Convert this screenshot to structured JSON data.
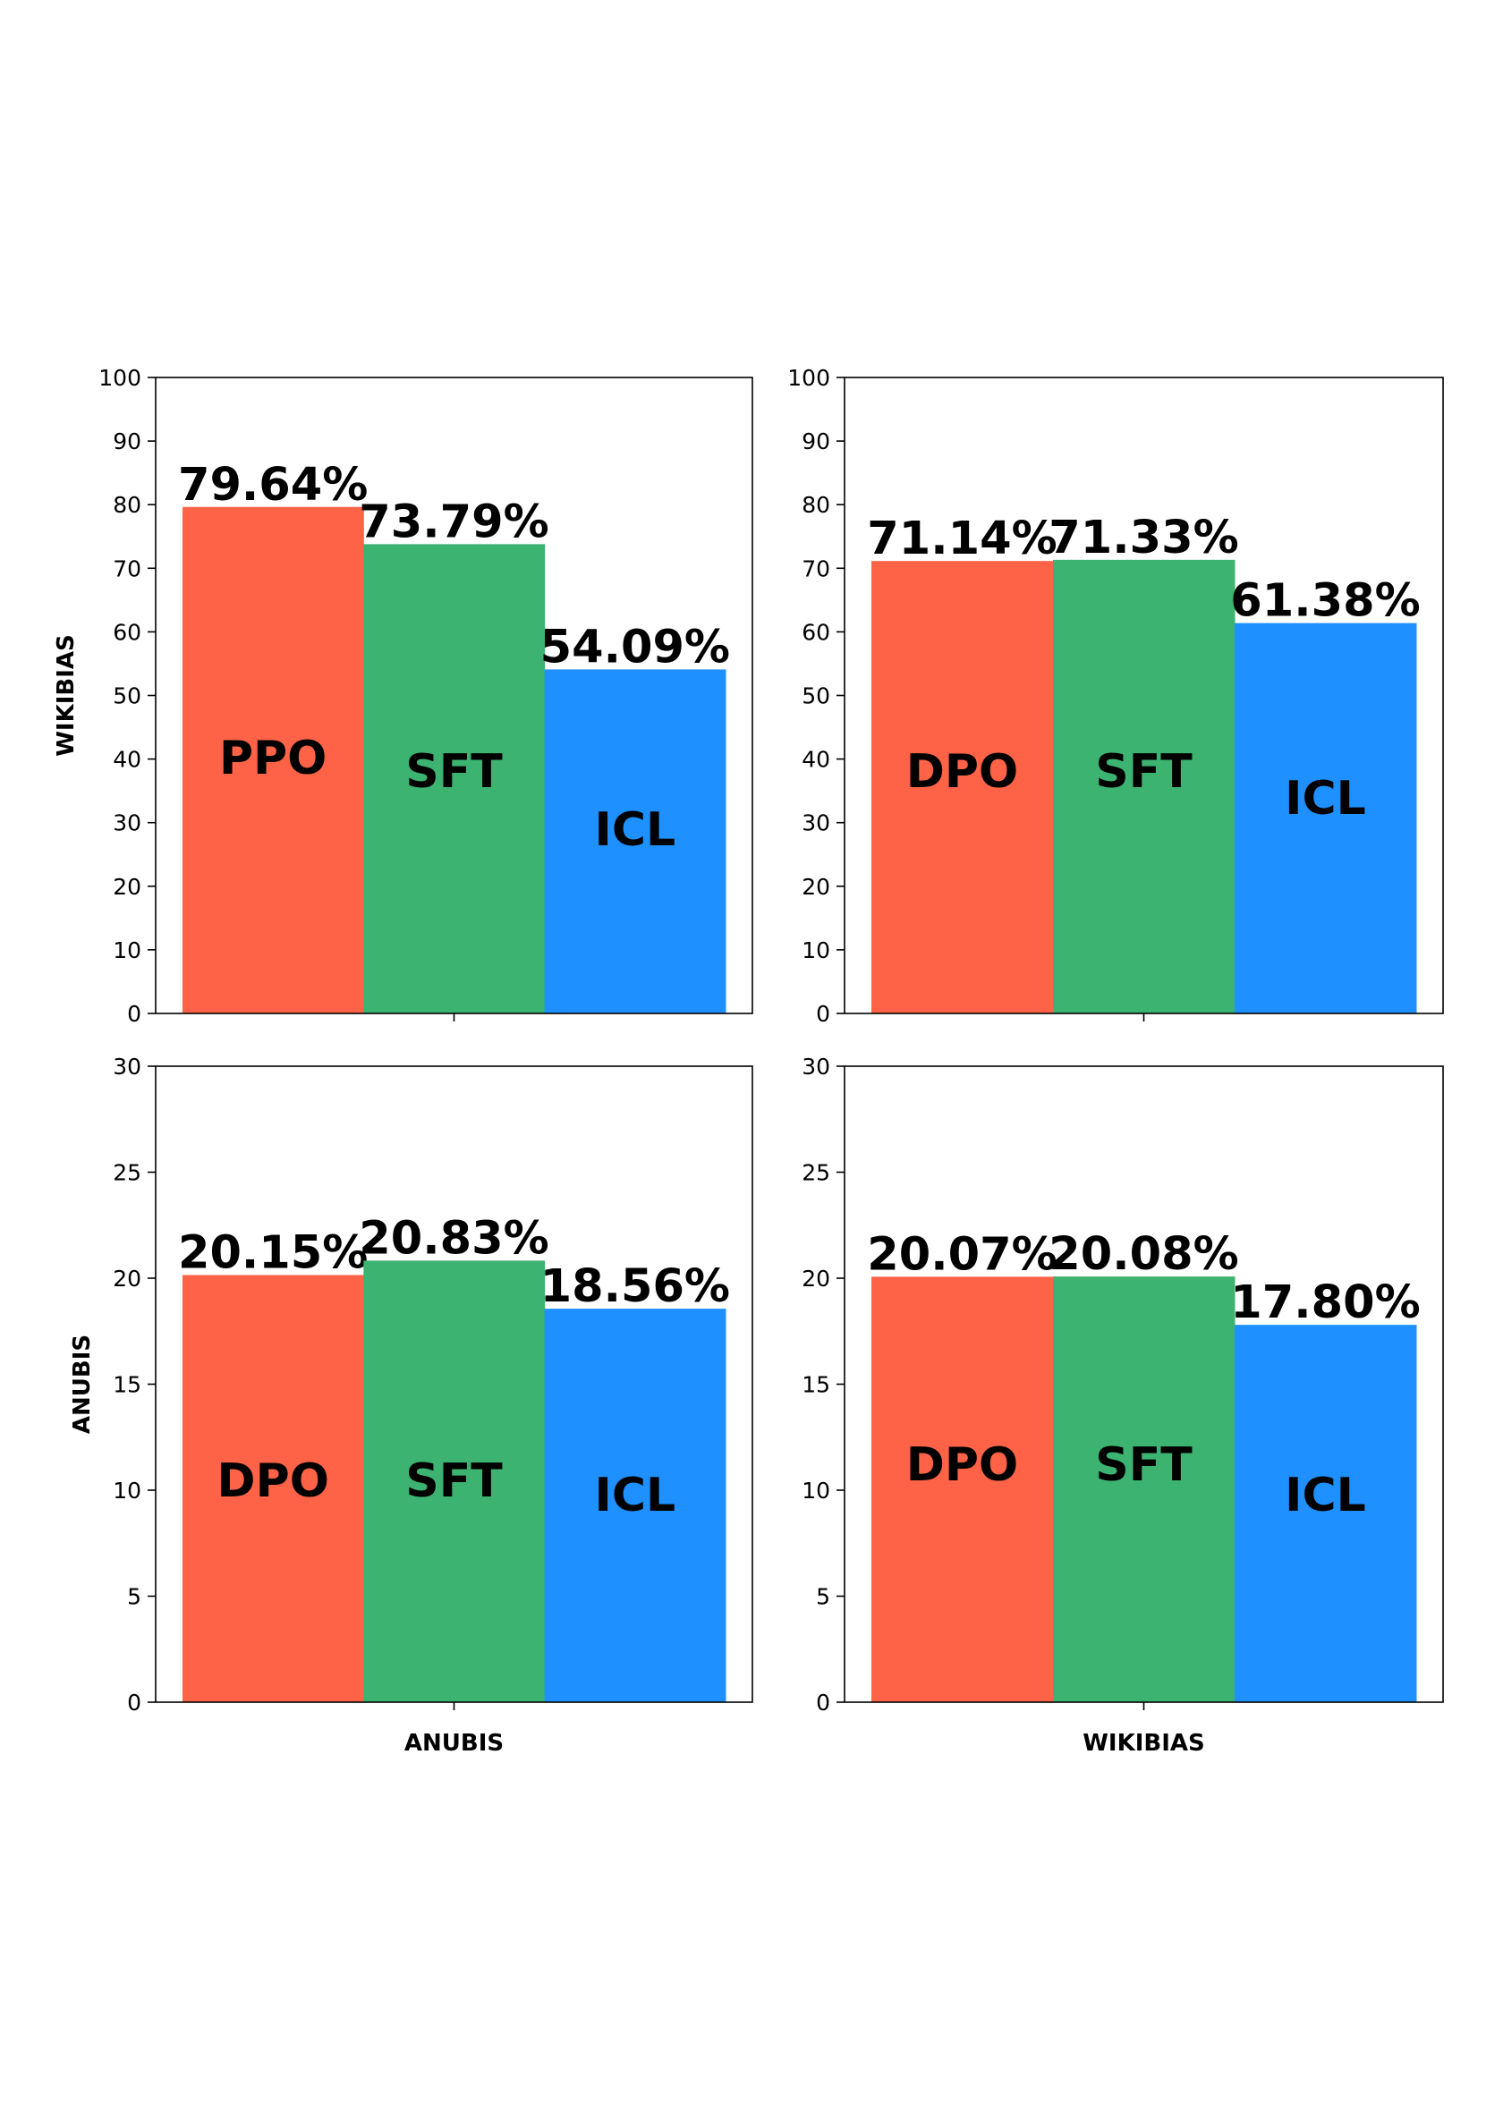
{
  "colors": {
    "DPO": "#ff6347",
    "PPO": "#ff6347",
    "SFT": "#3cb371",
    "ICL": "#1e90ff"
  },
  "chart_data": [
    {
      "type": "bar",
      "categories": [
        "PPO",
        "SFT",
        "ICL"
      ],
      "values": [
        79.64,
        73.79,
        54.09
      ],
      "value_labels": [
        "79.64%",
        "73.79%",
        "54.09%"
      ],
      "ylabel": "WIKIBIAS",
      "xlabel": "",
      "ylim": [
        0,
        100
      ],
      "yticks": [
        "0",
        "10",
        "20",
        "30",
        "40",
        "50",
        "60",
        "70",
        "80",
        "90",
        "100"
      ],
      "grid": false
    },
    {
      "type": "bar",
      "categories": [
        "DPO",
        "SFT",
        "ICL"
      ],
      "values": [
        71.14,
        71.33,
        61.38
      ],
      "value_labels": [
        "71.14%",
        "71.33%",
        "61.38%"
      ],
      "ylabel": "",
      "xlabel": "",
      "ylim": [
        0,
        100
      ],
      "yticks": [
        "0",
        "10",
        "20",
        "30",
        "40",
        "50",
        "60",
        "70",
        "80",
        "90",
        "100"
      ],
      "grid": false
    },
    {
      "type": "bar",
      "categories": [
        "DPO",
        "SFT",
        "ICL"
      ],
      "values": [
        20.15,
        20.83,
        18.56
      ],
      "value_labels": [
        "20.15%",
        "20.83%",
        "18.56%"
      ],
      "ylabel": "ANUBIS",
      "xlabel": "ANUBIS",
      "ylim": [
        0,
        30
      ],
      "yticks": [
        "0",
        "5",
        "10",
        "15",
        "20",
        "25",
        "30"
      ],
      "grid": false
    },
    {
      "type": "bar",
      "categories": [
        "DPO",
        "SFT",
        "ICL"
      ],
      "values": [
        20.07,
        20.08,
        17.8
      ],
      "value_labels": [
        "20.07%",
        "20.08%",
        "17.80%"
      ],
      "ylabel": "",
      "xlabel": "WIKIBIAS",
      "ylim": [
        0,
        30
      ],
      "yticks": [
        "0",
        "5",
        "10",
        "15",
        "20",
        "25",
        "30"
      ],
      "grid": false
    }
  ]
}
